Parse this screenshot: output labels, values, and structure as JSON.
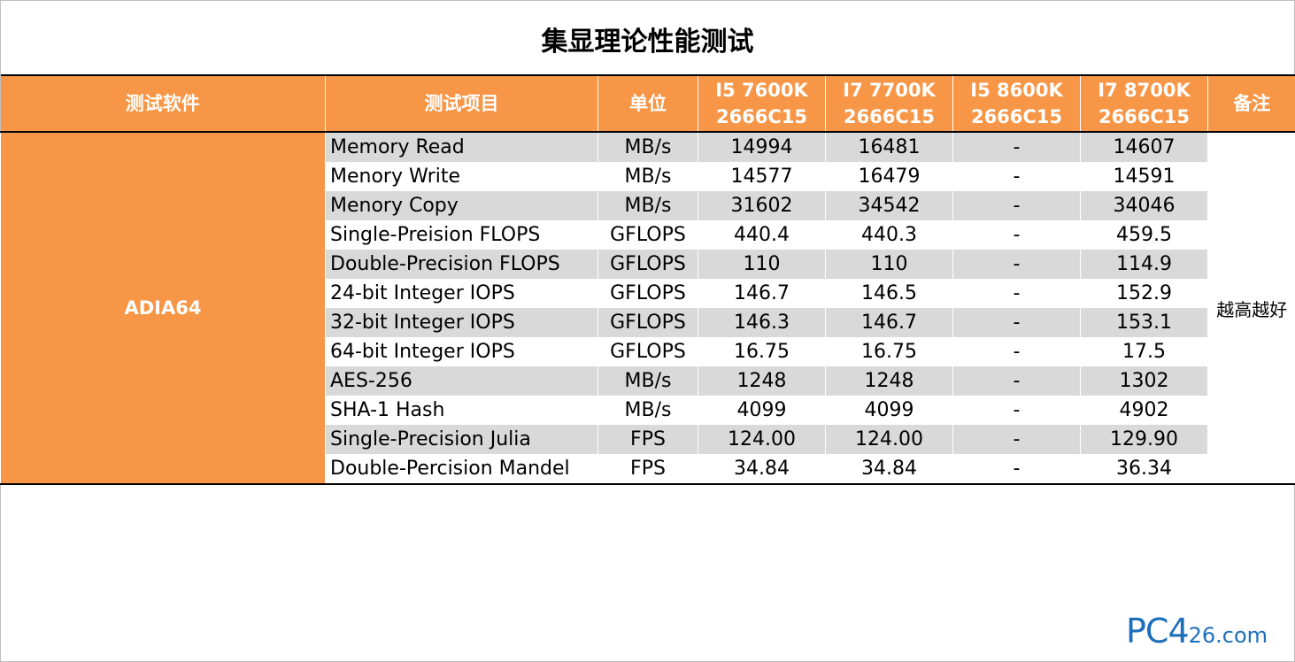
{
  "title": "集显理论性能测试",
  "header": {
    "software": "测试软件",
    "item": "测试项目",
    "unit": "单位",
    "cpu1": [
      "I5 7600K",
      "2666C15"
    ],
    "cpu2": [
      "I7 7700K",
      "2666C15"
    ],
    "cpu3": [
      "I5 8600K",
      "2666C15"
    ],
    "cpu4": [
      "I7 8700K",
      "2666C15"
    ],
    "note": "备注"
  },
  "software": "ADIA64",
  "note": "越高越好",
  "rows": [
    {
      "item": "Memory Read",
      "unit": "MB/s",
      "v1": "14994",
      "v2": "16481",
      "v3": "-",
      "v4": "14607"
    },
    {
      "item": "Menory Write",
      "unit": "MB/s",
      "v1": "14577",
      "v2": "16479",
      "v3": "-",
      "v4": "14591"
    },
    {
      "item": "Menory Copy",
      "unit": "MB/s",
      "v1": "31602",
      "v2": "34542",
      "v3": "-",
      "v4": "34046"
    },
    {
      "item": "Single-Preision FLOPS",
      "unit": "GFLOPS",
      "v1": "440.4",
      "v2": "440.3",
      "v3": "-",
      "v4": "459.5"
    },
    {
      "item": "Double-Precision FLOPS",
      "unit": "GFLOPS",
      "v1": "110",
      "v2": "110",
      "v3": "-",
      "v4": "114.9"
    },
    {
      "item": "24-bit Integer IOPS",
      "unit": "GFLOPS",
      "v1": "146.7",
      "v2": "146.5",
      "v3": "-",
      "v4": "152.9"
    },
    {
      "item": "32-bit Integer IOPS",
      "unit": "GFLOPS",
      "v1": "146.3",
      "v2": "146.7",
      "v3": "-",
      "v4": "153.1"
    },
    {
      "item": "64-bit Integer IOPS",
      "unit": "GFLOPS",
      "v1": "16.75",
      "v2": "16.75",
      "v3": "-",
      "v4": "17.5"
    },
    {
      "item": "AES-256",
      "unit": "MB/s",
      "v1": "1248",
      "v2": "1248",
      "v3": "-",
      "v4": "1302"
    },
    {
      "item": "SHA-1 Hash",
      "unit": "MB/s",
      "v1": "4099",
      "v2": "4099",
      "v3": "-",
      "v4": "4902"
    },
    {
      "item": "Single-Precision Julia",
      "unit": "FPS",
      "v1": "124.00",
      "v2": "124.00",
      "v3": "-",
      "v4": "129.90"
    },
    {
      "item": "Double-Percision Mandel",
      "unit": "FPS",
      "v1": "34.84",
      "v2": "34.84",
      "v3": "-",
      "v4": "36.34"
    }
  ],
  "watermark": {
    "big": "PC4",
    "small": "26.com"
  },
  "colors": {
    "header_bg": "#f79646",
    "shade": "#d9d9d9",
    "logo": "#1e6fba"
  }
}
